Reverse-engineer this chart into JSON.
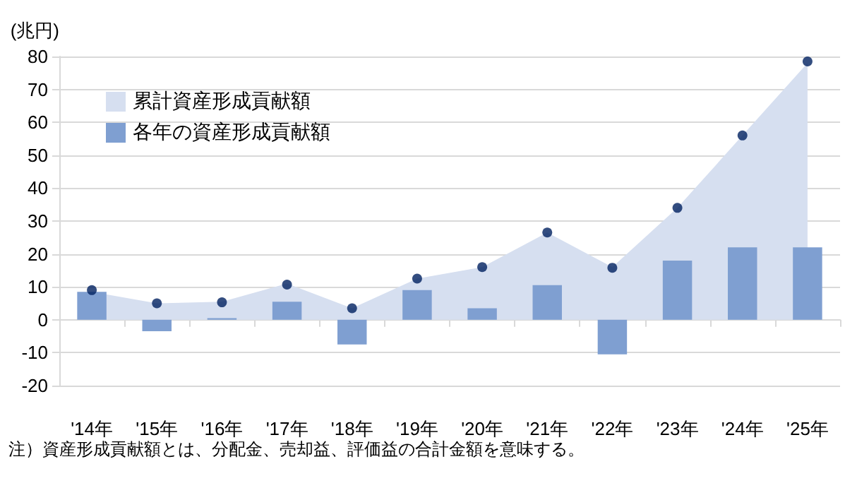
{
  "chart_data": {
    "type": "bar",
    "ylabel": "(兆円)",
    "categories": [
      "'14年",
      "'15年",
      "'16年",
      "'17年",
      "'18年",
      "'19年",
      "'20年",
      "'21年",
      "'22年",
      "'23年",
      "'24年",
      "'25年"
    ],
    "series": [
      {
        "name": "累計資産形成貢献額",
        "type": "area",
        "color": "#d6dff0",
        "values": [
          8.5,
          5,
          5.5,
          11,
          3.5,
          12.5,
          16,
          26.5,
          16,
          34,
          56,
          78
        ]
      },
      {
        "name": "各年の資産形成貢献額",
        "color": "#7f9fd1",
        "values": [
          8.5,
          -3.5,
          0.5,
          5.5,
          -7.5,
          9,
          3.5,
          10.5,
          -10.5,
          18,
          22,
          22
        ]
      },
      {
        "type": "scatter",
        "color": "#002060",
        "marker": "circle",
        "values": [
          9,
          5,
          5.3,
          10.7,
          3.5,
          12.5,
          16,
          26.5,
          15.8,
          34,
          56,
          78.5
        ]
      }
    ],
    "ylim": [
      -20,
      80
    ],
    "yticks": [
      -20,
      -10,
      0,
      10,
      20,
      30,
      40,
      50,
      60,
      70,
      80
    ],
    "grid": "y",
    "legend": "top left",
    "annotations": [
      "注）資産形成貢献額とは、分配金、売却益、評価益の合計金額を意味する。"
    ]
  }
}
